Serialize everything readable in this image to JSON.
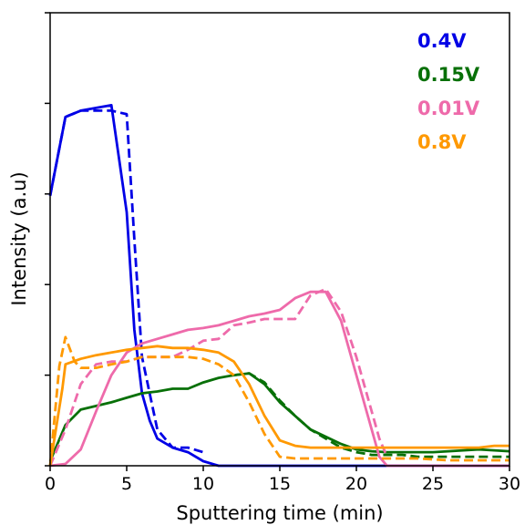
{
  "chart_data": {
    "type": "line",
    "title": "",
    "xlabel": "Sputtering time (min)",
    "ylabel": "Intensity (a.u)",
    "xlim": [
      0,
      30
    ],
    "ylim": [
      0,
      5
    ],
    "xticks": [
      "0",
      "5",
      "10",
      "15",
      "20",
      "25",
      "30"
    ],
    "yticks_labeled": false,
    "grid": false,
    "legend": {
      "placement": "top-right",
      "style": "colored-text"
    },
    "series": [
      {
        "name": "0.4V",
        "color": "#0000e6",
        "style": "solid",
        "x": [
          0,
          1,
          2,
          3,
          4,
          5,
          5.5,
          6,
          6.5,
          7,
          8,
          9,
          10,
          11,
          12,
          15,
          20,
          25,
          30
        ],
        "y": [
          2.98,
          3.85,
          3.92,
          3.95,
          3.98,
          2.8,
          1.5,
          0.8,
          0.5,
          0.3,
          0.2,
          0.15,
          0.05,
          0.0,
          0.0,
          0.0,
          0.0,
          0.0,
          0.0
        ]
      },
      {
        "name": "",
        "color": "#0000e6",
        "style": "dashed",
        "x": [
          0,
          1,
          2,
          3,
          4,
          5,
          5.5,
          6,
          6.5,
          7,
          8,
          9,
          10
        ],
        "y": [
          2.98,
          3.85,
          3.92,
          3.92,
          3.92,
          3.88,
          2.5,
          1.2,
          0.8,
          0.4,
          0.2,
          0.2,
          0.15
        ]
      },
      {
        "name": "0.15V",
        "color": "#087008",
        "style": "solid",
        "x": [
          0,
          1,
          2,
          3,
          4,
          5,
          6,
          7,
          8,
          9,
          10,
          11,
          12,
          13,
          14,
          15,
          16,
          17,
          18,
          19,
          20,
          21,
          22,
          23,
          24,
          25,
          26,
          27,
          28,
          29,
          30
        ],
        "y": [
          0.05,
          0.45,
          0.62,
          0.66,
          0.7,
          0.75,
          0.8,
          0.82,
          0.85,
          0.85,
          0.92,
          0.97,
          1.0,
          1.02,
          0.9,
          0.7,
          0.55,
          0.4,
          0.32,
          0.24,
          0.18,
          0.16,
          0.15,
          0.15,
          0.15,
          0.15,
          0.16,
          0.17,
          0.18,
          0.17,
          0.16
        ]
      },
      {
        "name": "",
        "color": "#087008",
        "style": "dashed",
        "x": [
          12,
          13,
          14,
          15,
          16,
          17,
          18,
          19,
          20,
          21,
          22,
          23,
          24,
          25,
          26,
          27,
          28,
          29,
          30
        ],
        "y": [
          1.0,
          1.02,
          0.92,
          0.72,
          0.55,
          0.4,
          0.3,
          0.2,
          0.15,
          0.12,
          0.12,
          0.12,
          0.1,
          0.1,
          0.1,
          0.1,
          0.1,
          0.1,
          0.1
        ]
      },
      {
        "name": "0.01V",
        "color": "#ee6aaa",
        "style": "solid",
        "x": [
          0,
          1,
          2,
          3,
          4,
          5,
          6,
          7,
          8,
          9,
          10,
          11,
          12,
          13,
          14,
          15,
          16,
          17,
          18,
          19,
          20,
          21,
          21.5,
          22,
          23,
          24,
          25,
          26,
          27,
          28,
          29,
          30
        ],
        "y": [
          0.0,
          0.02,
          0.18,
          0.6,
          1.0,
          1.25,
          1.35,
          1.4,
          1.45,
          1.5,
          1.52,
          1.55,
          1.6,
          1.65,
          1.68,
          1.72,
          1.85,
          1.92,
          1.92,
          1.6,
          1.0,
          0.4,
          0.1,
          0.0,
          0.0,
          0.0,
          0.0,
          0.0,
          0.0,
          0.0,
          0.0,
          0.0
        ]
      },
      {
        "name": "",
        "color": "#ee6aaa",
        "style": "dashed",
        "x": [
          0,
          1,
          2,
          3,
          4,
          5,
          6,
          7,
          8,
          9,
          10,
          11,
          12,
          13,
          14,
          15,
          16,
          17,
          18,
          19,
          20,
          21,
          21.5,
          22
        ],
        "y": [
          0.0,
          0.4,
          0.9,
          1.12,
          1.15,
          1.15,
          1.2,
          1.2,
          1.2,
          1.28,
          1.38,
          1.4,
          1.55,
          1.58,
          1.62,
          1.62,
          1.62,
          1.88,
          1.95,
          1.7,
          1.2,
          0.6,
          0.3,
          0.1
        ]
      },
      {
        "name": "0.8V",
        "color": "#ff9900",
        "style": "solid",
        "x": [
          0,
          0.8,
          1,
          2,
          3,
          4,
          5,
          6,
          7,
          8,
          9,
          10,
          11,
          12,
          13,
          14,
          15,
          16,
          17,
          18,
          19,
          20,
          21,
          22,
          23,
          24,
          25,
          26,
          27,
          28,
          29,
          30
        ],
        "y": [
          0.0,
          0.85,
          1.12,
          1.18,
          1.22,
          1.25,
          1.28,
          1.3,
          1.32,
          1.3,
          1.3,
          1.28,
          1.25,
          1.15,
          0.9,
          0.55,
          0.28,
          0.22,
          0.2,
          0.2,
          0.2,
          0.2,
          0.2,
          0.2,
          0.2,
          0.2,
          0.2,
          0.2,
          0.2,
          0.2,
          0.22,
          0.22
        ]
      },
      {
        "name": "",
        "color": "#ff9900",
        "style": "dashed",
        "x": [
          0,
          0.6,
          1,
          1.6,
          2,
          3,
          4,
          5,
          6,
          7,
          8,
          9,
          10,
          11,
          12,
          13,
          14,
          15,
          16,
          17,
          18,
          19,
          20,
          21,
          22,
          23,
          24,
          25,
          26,
          27,
          28,
          29,
          30
        ],
        "y": [
          0.0,
          1.1,
          1.42,
          1.15,
          1.08,
          1.08,
          1.12,
          1.15,
          1.2,
          1.2,
          1.2,
          1.2,
          1.18,
          1.12,
          1.0,
          0.7,
          0.35,
          0.1,
          0.08,
          0.08,
          0.08,
          0.08,
          0.08,
          0.08,
          0.08,
          0.08,
          0.08,
          0.07,
          0.06,
          0.06,
          0.06,
          0.06,
          0.06
        ]
      }
    ]
  }
}
